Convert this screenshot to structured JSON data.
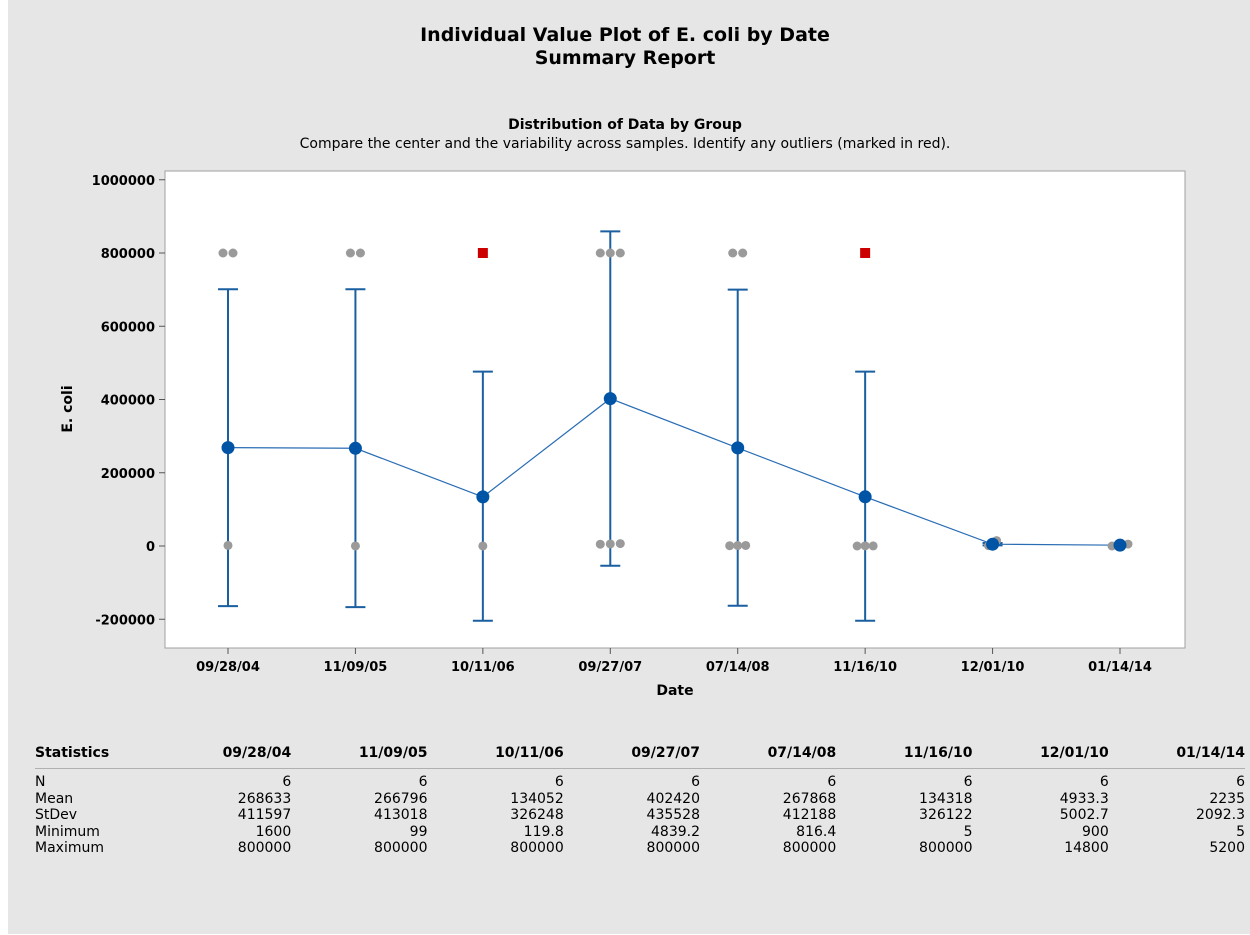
{
  "header": {
    "title": "Individual Value Plot of E. coli by Date",
    "subtitle": "Summary Report"
  },
  "chart_data": {
    "type": "scatter",
    "title": "Distribution of Data by Group",
    "description": "Compare the center and the variability across samples. Identify any outliers (marked in red).",
    "xlabel": "Date",
    "ylabel": "E. coli",
    "ylim": [
      -250000,
      1000000
    ],
    "yticks": [
      1000000,
      800000,
      600000,
      400000,
      200000,
      0,
      -200000
    ],
    "ytick_labels": [
      "1000000",
      "800000",
      "600000",
      "400000",
      "200000",
      "0",
      "-200000"
    ],
    "categories": [
      "09/28/04",
      "11/09/05",
      "10/11/06",
      "09/27/07",
      "07/14/08",
      "11/16/10",
      "12/01/10",
      "01/14/14"
    ],
    "grid": false,
    "series": [
      {
        "values": [
          268633,
          266796,
          134052,
          402420,
          267868,
          134318,
          4933.3,
          2235
        ]
      }
    ],
    "interval_low": [
      -164000,
      -167000,
      -204000,
      -54000,
      -163000,
      -204000,
      1700,
      800
    ],
    "interval_high": [
      701000,
      701000,
      476000,
      859000,
      700000,
      476000,
      8200,
      3700
    ],
    "points": [
      {
        "group": 0,
        "offset": -5,
        "y": 800000,
        "outlier": false
      },
      {
        "group": 0,
        "offset": 5,
        "y": 800000,
        "outlier": false
      },
      {
        "group": 0,
        "offset": 0,
        "y": 1600,
        "outlier": false
      },
      {
        "group": 1,
        "offset": -5,
        "y": 800000,
        "outlier": false
      },
      {
        "group": 1,
        "offset": 5,
        "y": 800000,
        "outlier": false
      },
      {
        "group": 1,
        "offset": 0,
        "y": 99,
        "outlier": false
      },
      {
        "group": 2,
        "offset": 0,
        "y": 800000,
        "outlier": true
      },
      {
        "group": 2,
        "offset": 0,
        "y": 119.8,
        "outlier": false
      },
      {
        "group": 3,
        "offset": -10,
        "y": 800000,
        "outlier": false
      },
      {
        "group": 3,
        "offset": 0,
        "y": 800000,
        "outlier": false
      },
      {
        "group": 3,
        "offset": 10,
        "y": 800000,
        "outlier": false
      },
      {
        "group": 3,
        "offset": -10,
        "y": 4839.2,
        "outlier": false
      },
      {
        "group": 3,
        "offset": 0,
        "y": 5500,
        "outlier": false
      },
      {
        "group": 3,
        "offset": 10,
        "y": 6500,
        "outlier": false
      },
      {
        "group": 4,
        "offset": -5,
        "y": 800000,
        "outlier": false
      },
      {
        "group": 4,
        "offset": 5,
        "y": 800000,
        "outlier": false
      },
      {
        "group": 4,
        "offset": -8,
        "y": 816.4,
        "outlier": false
      },
      {
        "group": 4,
        "offset": 0,
        "y": 1200,
        "outlier": false
      },
      {
        "group": 4,
        "offset": 8,
        "y": 1500,
        "outlier": false
      },
      {
        "group": 5,
        "offset": 0,
        "y": 800000,
        "outlier": true
      },
      {
        "group": 5,
        "offset": -8,
        "y": 5,
        "outlier": false
      },
      {
        "group": 5,
        "offset": 0,
        "y": 400,
        "outlier": false
      },
      {
        "group": 5,
        "offset": 8,
        "y": 300,
        "outlier": false
      },
      {
        "group": 6,
        "offset": -4,
        "y": 900,
        "outlier": false
      },
      {
        "group": 6,
        "offset": 4,
        "y": 14800,
        "outlier": false
      },
      {
        "group": 7,
        "offset": -8,
        "y": 5,
        "outlier": false
      },
      {
        "group": 7,
        "offset": 0,
        "y": 2000,
        "outlier": false
      },
      {
        "group": 7,
        "offset": 8,
        "y": 5200,
        "outlier": false
      }
    ],
    "colors": {
      "mean": "#0054a6",
      "interval": "#1a5fa0",
      "point": "#9a9a9a",
      "outlier": "#cc0000",
      "line": "#2a6db4"
    }
  },
  "stats": {
    "header_label": "Statistics",
    "columns": [
      "09/28/04",
      "11/09/05",
      "10/11/06",
      "09/27/07",
      "07/14/08",
      "11/16/10",
      "12/01/10",
      "01/14/14"
    ],
    "rows": [
      {
        "label": "N",
        "values": [
          "6",
          "6",
          "6",
          "6",
          "6",
          "6",
          "6",
          "6"
        ]
      },
      {
        "label": "Mean",
        "values": [
          "268633",
          "266796",
          "134052",
          "402420",
          "267868",
          "134318",
          "4933.3",
          "2235"
        ]
      },
      {
        "label": "StDev",
        "values": [
          "411597",
          "413018",
          "326248",
          "435528",
          "412188",
          "326122",
          "5002.7",
          "2092.3"
        ]
      },
      {
        "label": "Minimum",
        "values": [
          "1600",
          "99",
          "119.8",
          "4839.2",
          "816.4",
          "5",
          "900",
          "5"
        ]
      },
      {
        "label": "Maximum",
        "values": [
          "800000",
          "800000",
          "800000",
          "800000",
          "800000",
          "800000",
          "14800",
          "5200"
        ]
      }
    ]
  }
}
